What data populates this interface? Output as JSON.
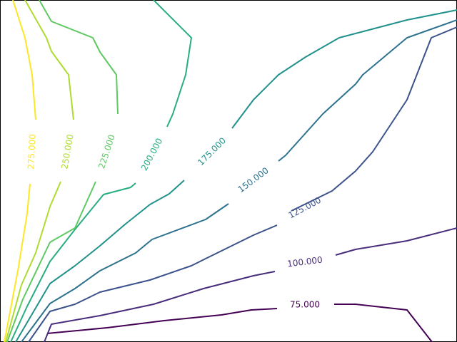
{
  "chart_data": {
    "type": "contour",
    "series": [
      {
        "level": "75.000",
        "color": "#440154",
        "segments": [
          [
            [
              66,
              468
            ],
            [
              150,
              460
            ],
            [
              230,
              450
            ],
            [
              310,
              442
            ],
            [
              352,
              435
            ],
            [
              388,
              433
            ]
          ],
          [
            [
              468,
              427
            ],
            [
              498,
              427
            ],
            [
              570,
              435
            ],
            [
              605,
              480
            ]
          ]
        ],
        "label": {
          "text": "75.000",
          "pos": [
            427,
            428
          ],
          "angle": 0
        }
      },
      {
        "level": "100.000",
        "color": "#472d7b",
        "segments": [
          [
            [
              62,
              480
            ],
            [
              72,
              455
            ],
            [
              140,
              443
            ],
            [
              215,
              427
            ],
            [
              285,
              405
            ],
            [
              355,
              387
            ],
            [
              385,
              381
            ]
          ],
          [
            [
              470,
              358
            ],
            [
              498,
              350
            ],
            [
              570,
              338
            ],
            [
              640,
              320
            ]
          ]
        ],
        "label": {
          "text": "100.000",
          "pos": [
            427,
            368
          ],
          "angle": -7
        }
      },
      {
        "level": "125.000",
        "color": "#3b528b",
        "segments": [
          [
            [
              40,
              480
            ],
            [
              70,
              437
            ],
            [
              105,
              427
            ],
            [
              140,
              410
            ],
            [
              210,
              393
            ],
            [
              268,
              373
            ],
            [
              288,
              363
            ],
            [
              355,
              330
            ],
            [
              388,
              316
            ]
          ],
          [
            [
              408,
              296
            ],
            [
              465,
              268
            ],
            [
              498,
              240
            ],
            [
              522,
              213
            ],
            [
              570,
              140
            ],
            [
              604,
              53
            ],
            [
              640,
              38
            ]
          ]
        ],
        "label": {
          "text": "125.000",
          "pos": [
            427,
            292
          ],
          "angle": -28
        }
      },
      {
        "level": "150.000",
        "color": "#2c728e",
        "segments": [
          [
            [
              30,
              480
            ],
            [
              70,
              426
            ],
            [
              105,
              405
            ],
            [
              140,
              380
            ],
            [
              190,
              355
            ],
            [
              213,
              336
            ],
            [
              288,
              308
            ],
            [
              320,
              286
            ]
          ],
          [
            [
              390,
              226
            ],
            [
              400,
              218
            ],
            [
              452,
              160
            ],
            [
              498,
              118
            ],
            [
              508,
              105
            ],
            [
              570,
              53
            ],
            [
              640,
              28
            ]
          ]
        ],
        "label": {
          "text": "150.000",
          "pos": [
            355,
            253
          ],
          "angle": -37
        }
      },
      {
        "level": "175.000",
        "color": "#21918c",
        "segments": [
          [
            [
              22,
              480
            ],
            [
              70,
              398
            ],
            [
              105,
              373
            ],
            [
              140,
              345
            ],
            [
              175,
              315
            ],
            [
              210,
              287
            ],
            [
              237,
              272
            ],
            [
              258,
              253
            ]
          ],
          [
            [
              325,
              180
            ],
            [
              355,
              140
            ],
            [
              390,
              105
            ],
            [
              428,
              80
            ],
            [
              475,
              53
            ],
            [
              570,
              28
            ],
            [
              640,
              14
            ]
          ]
        ],
        "label": {
          "text": "175.000",
          "pos": [
            297,
            213
          ],
          "angle": -45
        }
      },
      {
        "level": "200.000",
        "color": "#27ad81",
        "segments": [
          [
            [
              15,
              480
            ],
            [
              38,
              430
            ],
            [
              70,
              367
            ],
            [
              105,
              322
            ],
            [
              145,
              273
            ],
            [
              183,
              263
            ],
            [
              190,
              257
            ]
          ],
          [
            [
              234,
              178
            ],
            [
              242,
              160
            ],
            [
              260,
              105
            ],
            [
              268,
              53
            ],
            [
              215,
              0
            ]
          ]
        ],
        "label": {
          "text": "200.000",
          "pos": [
            213,
            217
          ],
          "angle": -62
        }
      },
      {
        "level": "225.000",
        "color": "#5ec962",
        "segments": [
          [
            [
              10,
              480
            ],
            [
              32,
              420
            ],
            [
              70,
              340
            ],
            [
              105,
              320
            ],
            [
              134,
              255
            ]
          ],
          [
            [
              165,
              160
            ],
            [
              163,
              105
            ],
            [
              140,
              73
            ],
            [
              130,
              53
            ],
            [
              72,
              30
            ],
            [
              55,
              0
            ]
          ]
        ],
        "label": {
          "text": "225.000",
          "pos": [
            150,
            213
          ],
          "angle": -72
        }
      },
      {
        "level": "250.000",
        "color": "#addc30",
        "segments": [
          [
            [
              8,
              480
            ],
            [
              30,
              400
            ],
            [
              50,
              355
            ],
            [
              70,
              290
            ],
            [
              85,
              255
            ]
          ],
          [
            [
              103,
              168
            ],
            [
              96,
              105
            ],
            [
              72,
              72
            ],
            [
              65,
              53
            ],
            [
              35,
              0
            ]
          ]
        ],
        "label": {
          "text": "250.000",
          "pos": [
            95,
            213
          ],
          "angle": -80
        }
      },
      {
        "level": "275.000",
        "color": "#fde725",
        "segments": [
          [
            [
              6,
              480
            ],
            [
              25,
              380
            ],
            [
              38,
              300
            ],
            [
              42,
              258
            ]
          ],
          [
            [
              50,
              168
            ],
            [
              45,
              105
            ],
            [
              35,
              53
            ],
            [
              18,
              0
            ]
          ]
        ],
        "label": {
          "text": "275.000",
          "pos": [
            45,
            213
          ],
          "angle": -87
        }
      }
    ]
  }
}
